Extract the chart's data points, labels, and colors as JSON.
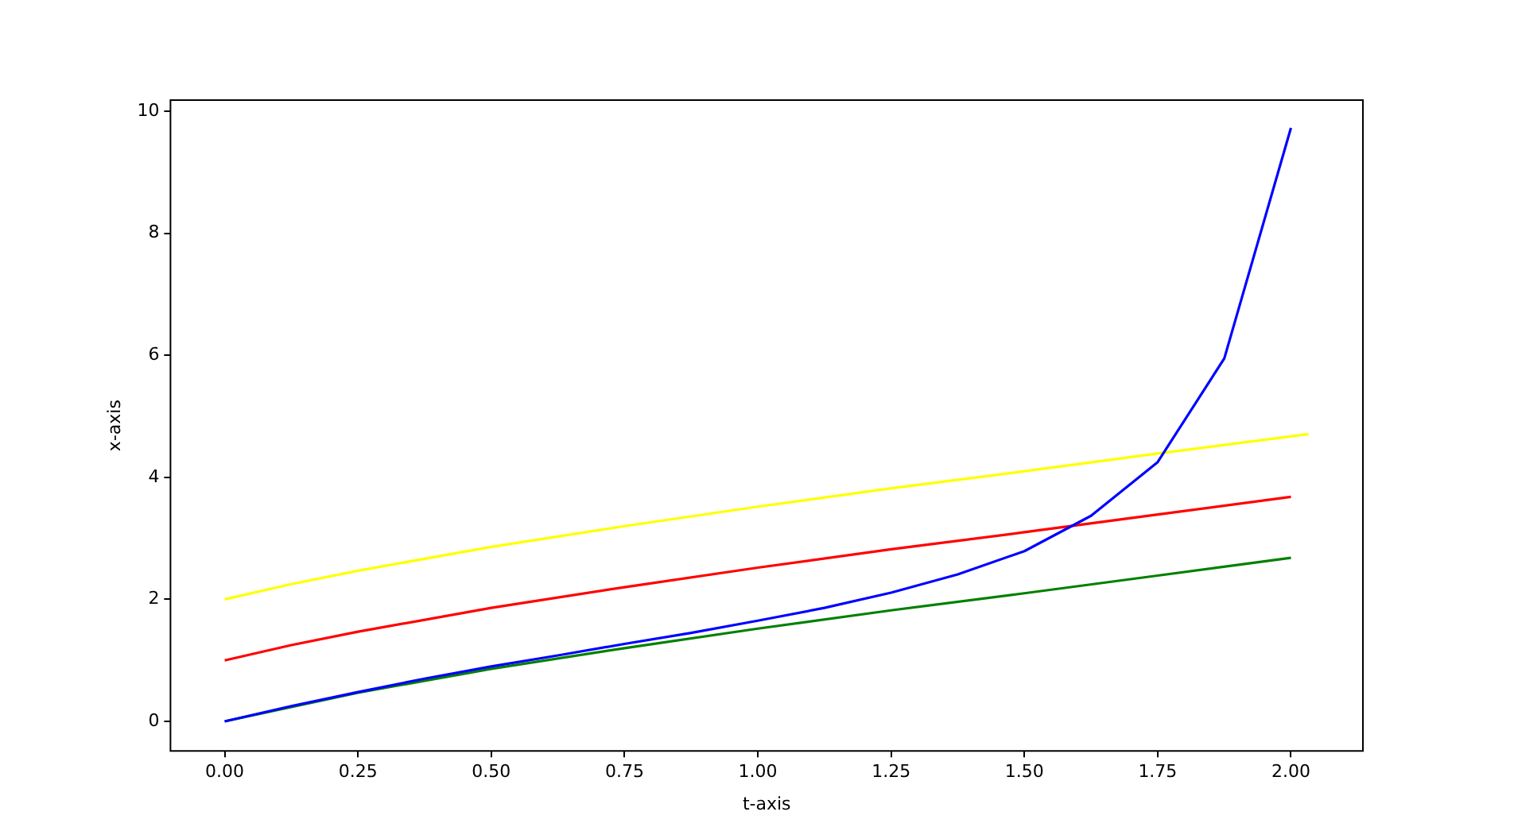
{
  "chart_data": {
    "type": "line",
    "xlabel": "t-axis",
    "ylabel": "x-axis",
    "xlim": [
      -0.1017,
      2.135
    ],
    "ylim": [
      -0.485,
      10.185
    ],
    "xticks": [
      {
        "value": 0,
        "label": "0.00"
      },
      {
        "value": 0.25,
        "label": "0.25"
      },
      {
        "value": 0.5,
        "label": "0.50"
      },
      {
        "value": 0.75,
        "label": "0.75"
      },
      {
        "value": 1,
        "label": "1.00"
      },
      {
        "value": 1.25,
        "label": "1.25"
      },
      {
        "value": 1.5,
        "label": "1.50"
      },
      {
        "value": 1.75,
        "label": "1.75"
      },
      {
        "value": 2,
        "label": "2.00"
      }
    ],
    "yticks": [
      0,
      2,
      4,
      6,
      8,
      10
    ],
    "grid": false,
    "legend": false,
    "marker": "none",
    "line_style": "solid",
    "series": [
      {
        "color": "#0000ff",
        "x": [
          0,
          0.125,
          0.25,
          0.375,
          0.5,
          0.625,
          0.75,
          0.875,
          1,
          1.125,
          1.25,
          1.375,
          1.5,
          1.625,
          1.75,
          1.875,
          2
        ],
        "values": [
          0,
          0.25,
          0.48,
          0.7,
          0.9,
          1.08,
          1.27,
          1.45,
          1.65,
          1.86,
          2.11,
          2.41,
          2.79,
          3.37,
          4.25,
          5.95,
          9.73
        ]
      },
      {
        "color": "#008000",
        "x": [
          0,
          0.25,
          0.5,
          0.75,
          1,
          1.25,
          1.5,
          1.75,
          2
        ],
        "values": [
          0,
          0.47,
          0.86,
          1.2,
          1.52,
          1.82,
          2.1,
          2.39,
          2.68
        ]
      },
      {
        "color": "#ff0000",
        "x": [
          0,
          0.125,
          0.25,
          0.5,
          0.75,
          1,
          1.25,
          1.5,
          1.75,
          2
        ],
        "values": [
          1,
          1.25,
          1.47,
          1.86,
          2.2,
          2.52,
          2.82,
          3.1,
          3.39,
          3.68
        ]
      },
      {
        "color": "#ffff00",
        "x": [
          0,
          0.125,
          0.25,
          0.5,
          0.75,
          1,
          1.25,
          1.5,
          1.75,
          2.033
        ],
        "values": [
          2,
          2.25,
          2.47,
          2.86,
          3.2,
          3.52,
          3.82,
          4.1,
          4.39,
          4.71
        ]
      }
    ]
  }
}
